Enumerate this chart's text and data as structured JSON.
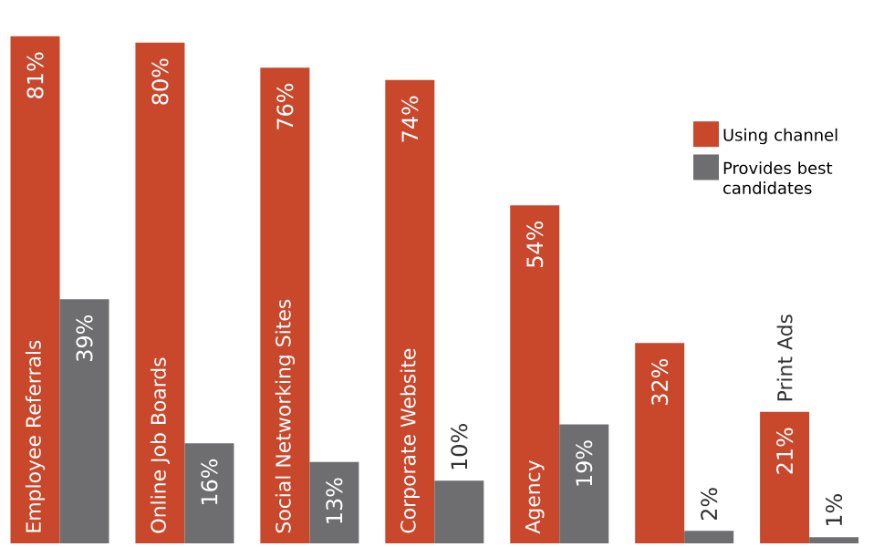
{
  "chart_data": {
    "type": "bar",
    "categories": [
      "Employee Referrals",
      "Online Job Boards",
      "Social Networking Sites",
      "Corporate Website",
      "Agency",
      null,
      "Print Ads"
    ],
    "series": [
      {
        "name": "Using channel",
        "color": "#c9472b",
        "values": [
          81,
          80,
          76,
          74,
          54,
          32,
          21
        ],
        "value_labels": [
          "81%",
          "80%",
          "76%",
          "74%",
          "54%",
          "32%",
          "21%"
        ]
      },
      {
        "name": "Provides best candidates",
        "color": "#6e6e70",
        "values": [
          39,
          16,
          13,
          10,
          19,
          2,
          1
        ],
        "value_labels": [
          "39%",
          "16%",
          "13%",
          "10%",
          "19%",
          "2%",
          "1%"
        ]
      }
    ],
    "legend": "top right"
  }
}
